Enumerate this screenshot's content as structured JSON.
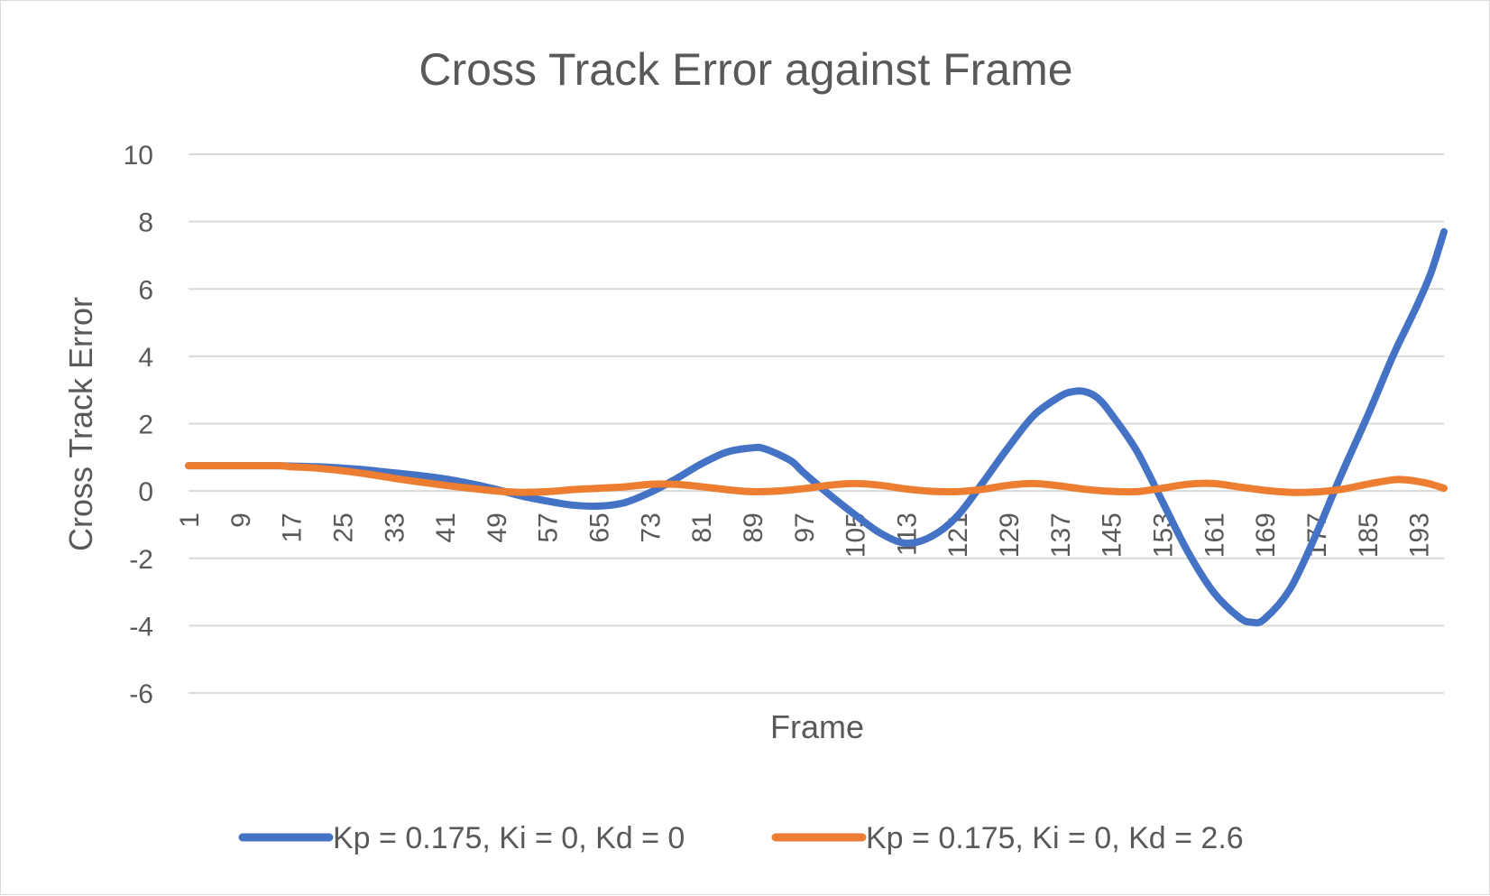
{
  "chart_data": {
    "type": "line",
    "title": "Cross Track Error against Frame",
    "xlabel": "Frame",
    "ylabel": "Cross Track Error",
    "xlim": [
      1,
      197
    ],
    "ylim": [
      -6,
      10
    ],
    "y_ticks": [
      -6,
      -4,
      -2,
      0,
      2,
      4,
      6,
      8,
      10
    ],
    "x_ticks": [
      1,
      9,
      17,
      25,
      33,
      41,
      49,
      57,
      65,
      73,
      81,
      89,
      97,
      105,
      113,
      121,
      129,
      137,
      145,
      153,
      161,
      169,
      177,
      185,
      193
    ],
    "grid": "horizontal",
    "legend_position": "bottom",
    "series": [
      {
        "name": "Kp = 0.175, Ki = 0, Kd = 0",
        "color": "#4472c4",
        "points": [
          [
            1,
            0.75
          ],
          [
            9,
            0.75
          ],
          [
            15,
            0.75
          ],
          [
            17,
            0.74
          ],
          [
            21,
            0.72
          ],
          [
            25,
            0.68
          ],
          [
            29,
            0.62
          ],
          [
            33,
            0.54
          ],
          [
            37,
            0.46
          ],
          [
            41,
            0.36
          ],
          [
            45,
            0.22
          ],
          [
            49,
            0.05
          ],
          [
            53,
            -0.15
          ],
          [
            57,
            -0.3
          ],
          [
            61,
            -0.42
          ],
          [
            65,
            -0.45
          ],
          [
            69,
            -0.35
          ],
          [
            73,
            -0.05
          ],
          [
            77,
            0.35
          ],
          [
            81,
            0.8
          ],
          [
            85,
            1.15
          ],
          [
            89,
            1.28
          ],
          [
            91,
            1.25
          ],
          [
            95,
            0.9
          ],
          [
            97,
            0.55
          ],
          [
            101,
            -0.1
          ],
          [
            105,
            -0.7
          ],
          [
            109,
            -1.25
          ],
          [
            113,
            -1.55
          ],
          [
            117,
            -1.35
          ],
          [
            121,
            -0.75
          ],
          [
            125,
            0.25
          ],
          [
            129,
            1.3
          ],
          [
            133,
            2.25
          ],
          [
            137,
            2.8
          ],
          [
            139,
            2.95
          ],
          [
            141,
            2.95
          ],
          [
            143,
            2.75
          ],
          [
            145,
            2.3
          ],
          [
            149,
            1.2
          ],
          [
            153,
            -0.3
          ],
          [
            157,
            -1.8
          ],
          [
            161,
            -3.0
          ],
          [
            165,
            -3.75
          ],
          [
            167,
            -3.9
          ],
          [
            169,
            -3.8
          ],
          [
            173,
            -2.9
          ],
          [
            177,
            -1.3
          ],
          [
            181,
            0.5
          ],
          [
            185,
            2.2
          ],
          [
            189,
            4.0
          ],
          [
            191,
            4.8
          ],
          [
            193,
            5.6
          ],
          [
            195,
            6.5
          ],
          [
            197,
            7.7
          ]
        ]
      },
      {
        "name": "Kp = 0.175, Ki = 0, Kd = 2.6",
        "color": "#ed7d31",
        "points": [
          [
            1,
            0.75
          ],
          [
            9,
            0.75
          ],
          [
            15,
            0.75
          ],
          [
            17,
            0.72
          ],
          [
            21,
            0.68
          ],
          [
            25,
            0.6
          ],
          [
            29,
            0.5
          ],
          [
            33,
            0.38
          ],
          [
            37,
            0.27
          ],
          [
            41,
            0.17
          ],
          [
            45,
            0.08
          ],
          [
            49,
            0.0
          ],
          [
            53,
            -0.04
          ],
          [
            57,
            -0.02
          ],
          [
            61,
            0.04
          ],
          [
            65,
            0.08
          ],
          [
            69,
            0.12
          ],
          [
            73,
            0.2
          ],
          [
            77,
            0.2
          ],
          [
            81,
            0.13
          ],
          [
            85,
            0.04
          ],
          [
            89,
            -0.02
          ],
          [
            93,
            0.0
          ],
          [
            97,
            0.07
          ],
          [
            101,
            0.17
          ],
          [
            105,
            0.22
          ],
          [
            109,
            0.17
          ],
          [
            113,
            0.06
          ],
          [
            117,
            -0.01
          ],
          [
            121,
            -0.02
          ],
          [
            125,
            0.05
          ],
          [
            129,
            0.17
          ],
          [
            133,
            0.22
          ],
          [
            137,
            0.15
          ],
          [
            141,
            0.05
          ],
          [
            145,
            -0.01
          ],
          [
            149,
            -0.02
          ],
          [
            153,
            0.08
          ],
          [
            157,
            0.2
          ],
          [
            161,
            0.22
          ],
          [
            165,
            0.12
          ],
          [
            169,
            0.02
          ],
          [
            173,
            -0.04
          ],
          [
            177,
            -0.03
          ],
          [
            181,
            0.05
          ],
          [
            185,
            0.2
          ],
          [
            189,
            0.33
          ],
          [
            191,
            0.33
          ],
          [
            193,
            0.28
          ],
          [
            195,
            0.2
          ],
          [
            197,
            0.08
          ]
        ]
      }
    ]
  }
}
